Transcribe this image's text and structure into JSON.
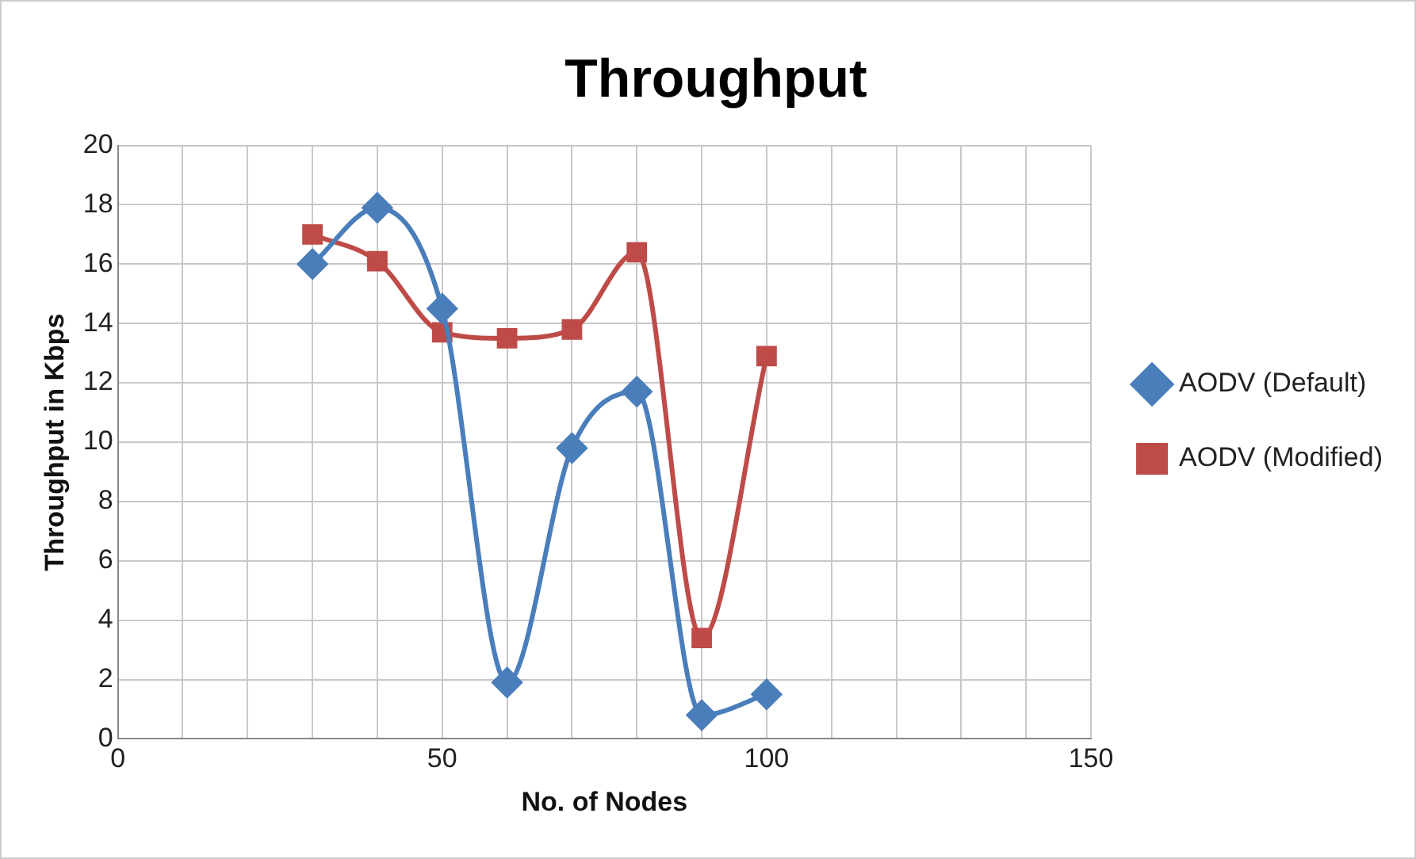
{
  "chart_data": {
    "type": "line",
    "title": "Throughput",
    "xlabel": "No. of Nodes",
    "ylabel": "Throughput in Kbps",
    "x": [
      30,
      40,
      50,
      60,
      70,
      80,
      90,
      100
    ],
    "series": [
      {
        "name": "AODV (Default)",
        "color": "#4a7ebb",
        "marker": "diamond",
        "values": [
          16.0,
          17.9,
          14.5,
          1.9,
          9.8,
          11.7,
          0.8,
          1.5
        ]
      },
      {
        "name": "AODV (Modified)",
        "color": "#be4b48",
        "marker": "square",
        "values": [
          17.0,
          16.1,
          13.7,
          13.5,
          13.8,
          16.4,
          3.4,
          12.9
        ]
      }
    ],
    "xlim": [
      0,
      150
    ],
    "xticks": [
      0,
      {
        "value": 10,
        "label": null
      },
      {
        "value": 20,
        "label": null
      },
      {
        "value": 30,
        "label": null
      },
      {
        "value": 40,
        "label": null
      },
      50,
      {
        "value": 60,
        "label": null
      },
      {
        "value": 70,
        "label": null
      },
      {
        "value": 80,
        "label": null
      },
      {
        "value": 90,
        "label": null
      },
      100,
      {
        "value": 110,
        "label": null
      },
      {
        "value": 120,
        "label": null
      },
      {
        "value": 130,
        "label": null
      },
      {
        "value": 140,
        "label": null
      },
      150
    ],
    "ylim": [
      0,
      20
    ],
    "yticks": [
      0,
      2,
      4,
      6,
      8,
      10,
      12,
      14,
      16,
      18,
      20
    ],
    "grid": true,
    "legend": "right",
    "line_style": "solid"
  }
}
